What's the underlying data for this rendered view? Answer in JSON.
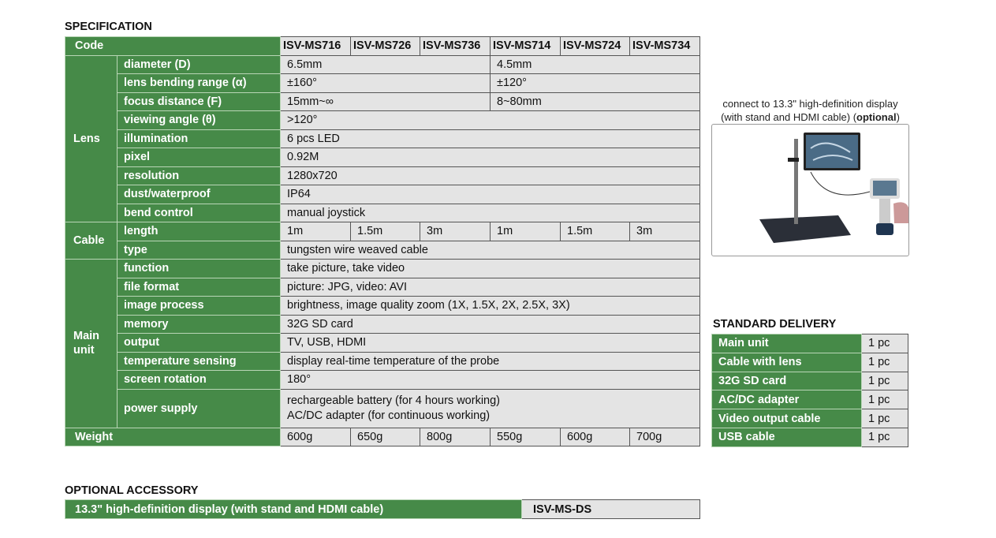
{
  "spec": {
    "title": "SPECIFICATION",
    "code_label": "Code",
    "codes": [
      "ISV-MS716",
      "ISV-MS726",
      "ISV-MS736",
      "ISV-MS714",
      "ISV-MS724",
      "ISV-MS734"
    ],
    "lens_label": "Lens",
    "cable_label": "Cable",
    "main_label": "Main unit",
    "weight_label": "Weight",
    "rows": {
      "diameter": {
        "label": "diameter (D)",
        "a": "6.5mm",
        "b": "4.5mm"
      },
      "bending": {
        "label": "lens bending range (α)",
        "a": "±160°",
        "b": "±120°"
      },
      "focus": {
        "label": "focus distance (F)",
        "a": "15mm~∞",
        "b": "8~80mm"
      },
      "viewing": {
        "label": "viewing angle (θ)",
        "v": ">120°"
      },
      "illumination": {
        "label": "illumination",
        "v": "6 pcs LED"
      },
      "pixel": {
        "label": "pixel",
        "v": "0.92M"
      },
      "resolution": {
        "label": "resolution",
        "v": "1280x720"
      },
      "dust": {
        "label": "dust/waterproof",
        "v": "IP64"
      },
      "bend": {
        "label": "bend control",
        "v": "manual joystick"
      },
      "length": {
        "label": "length",
        "vals": [
          "1m",
          "1.5m",
          "3m",
          "1m",
          "1.5m",
          "3m"
        ]
      },
      "type": {
        "label": "type",
        "v": "tungsten wire weaved cable"
      },
      "function": {
        "label": "function",
        "v": "take picture, take video"
      },
      "fileformat": {
        "label": "file format",
        "v": "picture: JPG, video: AVI"
      },
      "imageprocess": {
        "label": "image process",
        "v": "brightness, image quality zoom (1X, 1.5X, 2X, 2.5X, 3X)"
      },
      "memory": {
        "label": "memory",
        "v": "32G SD card"
      },
      "output": {
        "label": "output",
        "v": "TV, USB, HDMI"
      },
      "temp": {
        "label": "temperature sensing",
        "v": "display real-time temperature of the probe"
      },
      "rotation": {
        "label": "screen rotation",
        "v": "180°"
      },
      "power": {
        "label": "power supply",
        "v1": "rechargeable battery (for 4 hours working)",
        "v2": "AC/DC adapter (for continuous working)"
      },
      "weight": {
        "vals": [
          "600g",
          "650g",
          "800g",
          "550g",
          "600g",
          "700g"
        ]
      }
    }
  },
  "display": {
    "caption1": "connect to 13.3\" high-definition display",
    "caption2": "(with stand and HDMI cable) (",
    "caption_bold": "optional",
    "caption3": ")"
  },
  "delivery": {
    "title": "STANDARD DELIVERY",
    "items": [
      {
        "label": "Main unit",
        "qty": "1 pc"
      },
      {
        "label": "Cable with lens",
        "qty": "1 pc"
      },
      {
        "label": "32G SD card",
        "qty": "1 pc"
      },
      {
        "label": "AC/DC adapter",
        "qty": "1 pc"
      },
      {
        "label": "Video output cable",
        "qty": "1 pc"
      },
      {
        "label": "USB cable",
        "qty": "1 pc"
      }
    ]
  },
  "accessory": {
    "title": "OPTIONAL ACCESSORY",
    "label": "13.3\" high-definition display (with stand and HDMI cable)",
    "code": "ISV-MS-DS"
  }
}
